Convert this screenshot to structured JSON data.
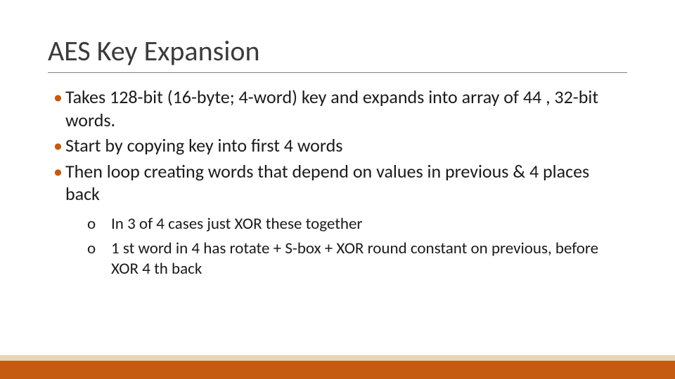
{
  "slide": {
    "title": "AES Key Expansion",
    "bullets": [
      "Takes 128-bit (16-byte; 4-word) key and expands into array of 44 , 32-bit words.",
      "Start by copying key into first 4 words",
      "Then loop creating words that depend on values in previous & 4 places back"
    ],
    "sub_bullets": [
      "In 3 of 4 cases just XOR these together",
      "1 st word in 4 has rotate + S-box + XOR round constant on previous, before XOR 4 th back"
    ]
  },
  "style": {
    "title_color": "#3b3b3b",
    "title_fontsize": 40,
    "title_underline_color": "#808080",
    "bullet_marker_color": "#c55a11",
    "bullet_text_color": "#1a1a1a",
    "bullet_fontsize": 26,
    "sub_bullet_fontsize": 23,
    "sub_marker": "o",
    "footer_bar_color": "#c55a11",
    "footer_stripe_color": "#e8d5b5",
    "background_color": "#ffffff"
  }
}
